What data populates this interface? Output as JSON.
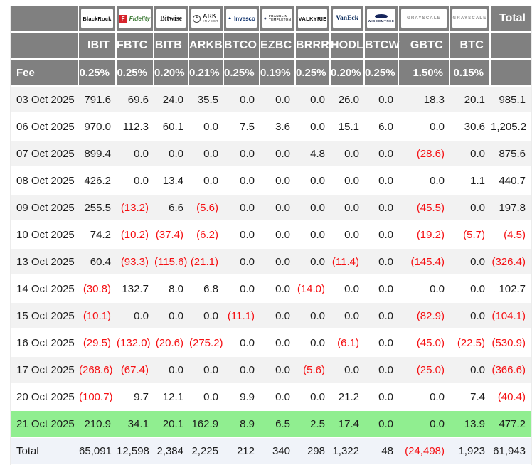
{
  "ui": {
    "total_label": "Total",
    "fee_label": "Fee",
    "colors": {
      "header_bg": "#808080",
      "header_text": "#ffffff",
      "stripe_bg": "#f2f2f2",
      "highlight_bg": "#90ee90",
      "total_bg": "#f0f3f9",
      "negative": "#f50f12",
      "text": "#1c1c1c"
    }
  },
  "chart_data": {
    "type": "table",
    "columns": [
      {
        "ticker": "IBIT",
        "fee": "0.25%",
        "logo": {
          "id": "blackrock",
          "lines": [
            "BlackRock"
          ]
        }
      },
      {
        "ticker": "FBTC",
        "fee": "0.25%",
        "logo": {
          "id": "fidelity",
          "icon": "f",
          "icon_text": "F",
          "lines": [
            "Fidelity"
          ]
        }
      },
      {
        "ticker": "BITB",
        "fee": "0.20%",
        "logo": {
          "id": "bitwise",
          "lines": [
            "Bitwise"
          ]
        }
      },
      {
        "ticker": "ARKB",
        "fee": "0.21%",
        "logo": {
          "id": "ark-invest",
          "icon": "circle",
          "icon_text": "*",
          "lines": [
            "ARK",
            "INVEST"
          ]
        }
      },
      {
        "ticker": "BTCO",
        "fee": "0.25%",
        "logo": {
          "id": "invesco",
          "icon": "mark",
          "icon_text": "▲",
          "lines": [
            "Invesco"
          ]
        }
      },
      {
        "ticker": "EZBC",
        "fee": "0.19%",
        "logo": {
          "id": "franklin-templeton",
          "icon": "seal",
          "icon_text": "●",
          "lines": [
            "FRANKLIN",
            "TEMPLETON"
          ]
        }
      },
      {
        "ticker": "BRRR",
        "fee": "0.25%",
        "logo": {
          "id": "valkyrie",
          "lines": [
            "VALKYRIE"
          ]
        }
      },
      {
        "ticker": "HODL",
        "fee": "0.20%",
        "logo": {
          "id": "vaneck",
          "lines": [
            "VanEck"
          ]
        }
      },
      {
        "ticker": "BTCW",
        "fee": "0.25%",
        "logo": {
          "id": "wisdomtree",
          "icon": "tree",
          "icon_text": "",
          "lines": [
            "WISDOMTREE"
          ]
        }
      },
      {
        "ticker": "GBTC",
        "fee": "1.50%",
        "logo": {
          "id": "grayscale",
          "lines": [
            "GRAYSCALE"
          ]
        }
      },
      {
        "ticker": "BTC",
        "fee": "0.15%",
        "logo": {
          "id": "grayscale",
          "lines": [
            "GRAYSCALE"
          ]
        }
      }
    ],
    "rows": [
      {
        "date": "03 Oct 2025",
        "values": [
          791.6,
          69.6,
          24.0,
          35.5,
          0.0,
          0.0,
          0.0,
          26.0,
          0.0,
          18.3,
          20.1
        ],
        "total": 985.1
      },
      {
        "date": "06 Oct 2025",
        "values": [
          970.0,
          112.3,
          60.1,
          0.0,
          7.5,
          3.6,
          0.0,
          15.1,
          6.0,
          0.0,
          30.6
        ],
        "total": 1205.2
      },
      {
        "date": "07 Oct 2025",
        "values": [
          899.4,
          0.0,
          0.0,
          0.0,
          0.0,
          0.0,
          4.8,
          0.0,
          0.0,
          -28.6,
          0.0
        ],
        "total": 875.6
      },
      {
        "date": "08 Oct 2025",
        "values": [
          426.2,
          0.0,
          13.4,
          0.0,
          0.0,
          0.0,
          0.0,
          0.0,
          0.0,
          0.0,
          1.1
        ],
        "total": 440.7
      },
      {
        "date": "09 Oct 2025",
        "values": [
          255.5,
          -13.2,
          6.6,
          -5.6,
          0.0,
          0.0,
          0.0,
          0.0,
          0.0,
          -45.5,
          0.0
        ],
        "total": 197.8
      },
      {
        "date": "10 Oct 2025",
        "values": [
          74.2,
          -10.2,
          -37.4,
          -6.2,
          0.0,
          0.0,
          0.0,
          0.0,
          0.0,
          -19.2,
          -5.7
        ],
        "total": -4.5
      },
      {
        "date": "13 Oct 2025",
        "values": [
          60.4,
          -93.3,
          -115.6,
          -21.1,
          0.0,
          0.0,
          0.0,
          -11.4,
          0.0,
          -145.4,
          0.0
        ],
        "total": -326.4
      },
      {
        "date": "14 Oct 2025",
        "values": [
          -30.8,
          132.7,
          8.0,
          6.8,
          0.0,
          0.0,
          -14.0,
          0.0,
          0.0,
          0.0,
          0.0
        ],
        "total": 102.7
      },
      {
        "date": "15 Oct 2025",
        "values": [
          -10.1,
          0.0,
          0.0,
          0.0,
          -11.1,
          0.0,
          0.0,
          0.0,
          0.0,
          -82.9,
          0.0
        ],
        "total": -104.1
      },
      {
        "date": "16 Oct 2025",
        "values": [
          -29.5,
          -132.0,
          -20.6,
          -275.2,
          0.0,
          0.0,
          0.0,
          -6.1,
          0.0,
          -45.0,
          -22.5
        ],
        "total": -530.9
      },
      {
        "date": "17 Oct 2025",
        "values": [
          -268.6,
          -67.4,
          0.0,
          0.0,
          0.0,
          0.0,
          -5.6,
          0.0,
          0.0,
          -25.0,
          0.0
        ],
        "total": -366.6
      },
      {
        "date": "20 Oct 2025",
        "values": [
          -100.7,
          9.7,
          12.1,
          0.0,
          9.9,
          0.0,
          0.0,
          21.2,
          0.0,
          0.0,
          7.4
        ],
        "total": -40.4
      },
      {
        "date": "21 Oct 2025",
        "values": [
          210.9,
          34.1,
          20.1,
          162.9,
          8.9,
          6.5,
          2.5,
          17.4,
          0.0,
          0.0,
          13.9
        ],
        "total": 477.2,
        "highlight": true
      }
    ],
    "total_row": {
      "label": "Total",
      "values": [
        65091,
        12598,
        2384,
        2225,
        212,
        340,
        298,
        1322,
        48,
        -24498,
        1923
      ],
      "total": 61943
    }
  }
}
